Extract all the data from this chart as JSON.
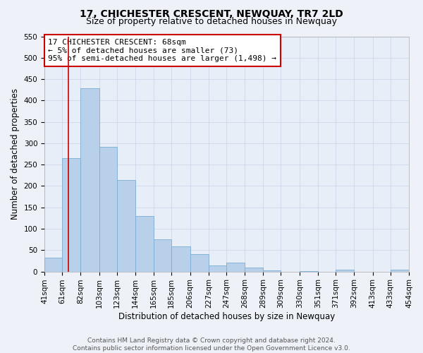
{
  "title": "17, CHICHESTER CRESCENT, NEWQUAY, TR7 2LD",
  "subtitle": "Size of property relative to detached houses in Newquay",
  "xlabel": "Distribution of detached houses by size in Newquay",
  "ylabel": "Number of detached properties",
  "bar_left_edges": [
    41,
    61,
    82,
    103,
    123,
    144,
    165,
    185,
    206,
    227,
    247,
    268,
    289,
    309,
    330,
    351,
    371,
    392,
    413,
    433
  ],
  "bar_widths": [
    20,
    21,
    21,
    20,
    21,
    21,
    20,
    21,
    21,
    20,
    21,
    21,
    20,
    21,
    21,
    20,
    21,
    21,
    20,
    21
  ],
  "bar_heights": [
    32,
    265,
    428,
    292,
    214,
    130,
    76,
    59,
    40,
    15,
    20,
    10,
    2,
    0,
    1,
    0,
    5,
    0,
    0,
    5
  ],
  "bar_color": "#b8d0ea",
  "bar_edgecolor": "#7aadd4",
  "tick_labels": [
    "41sqm",
    "61sqm",
    "82sqm",
    "103sqm",
    "123sqm",
    "144sqm",
    "165sqm",
    "185sqm",
    "206sqm",
    "227sqm",
    "247sqm",
    "268sqm",
    "289sqm",
    "309sqm",
    "330sqm",
    "351sqm",
    "371sqm",
    "392sqm",
    "413sqm",
    "433sqm",
    "454sqm"
  ],
  "ylim": [
    0,
    550
  ],
  "yticks": [
    0,
    50,
    100,
    150,
    200,
    250,
    300,
    350,
    400,
    450,
    500,
    550
  ],
  "xlim_left": 41,
  "xlim_right": 454,
  "property_line_x": 68,
  "property_line_color": "#cc0000",
  "annotation_text": "17 CHICHESTER CRESCENT: 68sqm\n← 5% of detached houses are smaller (73)\n95% of semi-detached houses are larger (1,498) →",
  "annotation_box_color": "#ffffff",
  "annotation_box_edgecolor": "#cc0000",
  "footer_line1": "Contains HM Land Registry data © Crown copyright and database right 2024.",
  "footer_line2": "Contains public sector information licensed under the Open Government Licence v3.0.",
  "background_color": "#eef2f8",
  "plot_bg_color": "#e8eef8",
  "grid_color": "#c8d4e8",
  "title_fontsize": 10,
  "subtitle_fontsize": 9,
  "axis_label_fontsize": 8.5,
  "tick_fontsize": 7.5,
  "annotation_fontsize": 8,
  "footer_fontsize": 6.5
}
